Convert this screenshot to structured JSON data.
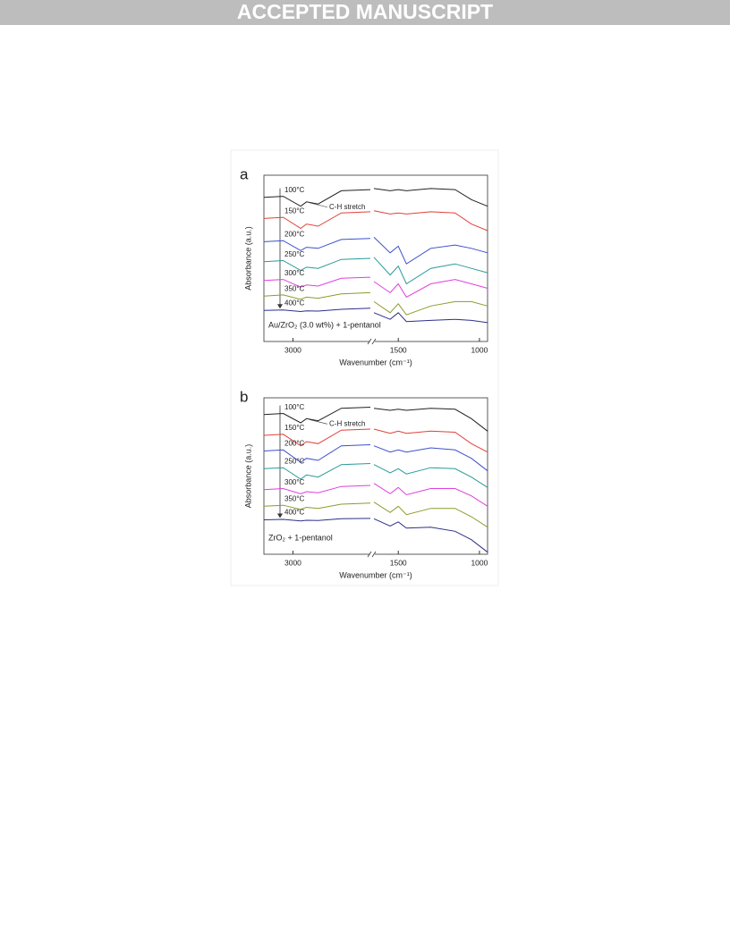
{
  "header": {
    "title": "ACCEPTED MANUSCRIPT"
  },
  "chart_data": [
    {
      "type": "line",
      "title": "a",
      "xlabel": "Wavenumber (cm⁻¹)",
      "ylabel": "Absorbance (a.u.)",
      "annotation": "C-H stretch",
      "sample": "Au/ZrO₂ (3.0 wt%) + 1-pentanol",
      "xlim": [
        3150,
        950
      ],
      "xbreak": [
        2600,
        1650
      ],
      "xticks": [
        3000,
        1500,
        1000
      ],
      "ylim": [
        0,
        7.5
      ],
      "x": [
        3150,
        3050,
        2960,
        2930,
        2870,
        2750,
        2600,
        1650,
        1550,
        1500,
        1450,
        1300,
        1150,
        1050,
        950
      ],
      "series": [
        {
          "name": "100°C",
          "color": "#222222",
          "values": [
            6.5,
            6.55,
            6.1,
            6.3,
            6.2,
            6.8,
            6.85,
            6.9,
            6.8,
            6.85,
            6.8,
            6.9,
            6.85,
            6.4,
            6.1
          ]
        },
        {
          "name": "150°C",
          "color": "#e0413a",
          "values": [
            5.55,
            5.6,
            5.1,
            5.3,
            5.2,
            5.8,
            5.85,
            5.9,
            5.75,
            5.8,
            5.75,
            5.85,
            5.8,
            5.3,
            5.0
          ]
        },
        {
          "name": "200°C",
          "color": "#3d4fcf",
          "values": [
            4.5,
            4.55,
            4.1,
            4.25,
            4.2,
            4.6,
            4.65,
            4.7,
            4.0,
            4.3,
            3.5,
            4.2,
            4.35,
            4.2,
            4.0
          ]
        },
        {
          "name": "250°C",
          "color": "#2a9a9a",
          "values": [
            3.6,
            3.65,
            3.2,
            3.35,
            3.3,
            3.7,
            3.75,
            3.8,
            3.0,
            3.4,
            2.6,
            3.3,
            3.5,
            3.3,
            3.1
          ]
        },
        {
          "name": "300°C",
          "color": "#e03ee0",
          "values": [
            2.75,
            2.8,
            2.45,
            2.55,
            2.5,
            2.85,
            2.9,
            2.7,
            2.2,
            2.6,
            2.0,
            2.6,
            2.8,
            2.6,
            2.4
          ]
        },
        {
          "name": "350°C",
          "color": "#8f9a2a",
          "values": [
            2.05,
            2.1,
            1.9,
            2.0,
            1.95,
            2.15,
            2.2,
            1.8,
            1.3,
            1.7,
            1.2,
            1.6,
            1.8,
            1.8,
            1.6
          ]
        },
        {
          "name": "400°C",
          "color": "#2c2f8a",
          "values": [
            1.4,
            1.42,
            1.35,
            1.38,
            1.37,
            1.45,
            1.5,
            1.3,
            1.0,
            1.3,
            0.9,
            0.95,
            1.0,
            0.95,
            0.85
          ]
        }
      ]
    },
    {
      "type": "line",
      "title": "b",
      "xlabel": "Wavenumber (cm⁻¹)",
      "ylabel": "Absorbance (a.u.)",
      "annotation": "C-H stretch",
      "sample": "ZrO₂ + 1-pentanol",
      "xlim": [
        3150,
        950
      ],
      "xbreak": [
        2600,
        1650
      ],
      "xticks": [
        3000,
        1500,
        1000
      ],
      "ylim": [
        0,
        7.5
      ],
      "x": [
        3150,
        3050,
        2960,
        2930,
        2870,
        2750,
        2600,
        1650,
        1550,
        1500,
        1450,
        1300,
        1150,
        1050,
        950
      ],
      "series": [
        {
          "name": "100°C",
          "color": "#222222",
          "values": [
            6.7,
            6.75,
            6.3,
            6.5,
            6.4,
            7.0,
            7.05,
            7.0,
            6.9,
            6.95,
            6.9,
            7.0,
            6.95,
            6.5,
            5.9
          ]
        },
        {
          "name": "150°C",
          "color": "#e0413a",
          "values": [
            5.7,
            5.75,
            5.2,
            5.4,
            5.3,
            5.95,
            6.0,
            6.0,
            5.8,
            5.9,
            5.8,
            5.9,
            5.85,
            5.3,
            4.9
          ]
        },
        {
          "name": "200°C",
          "color": "#3d4fcf",
          "values": [
            4.95,
            5.0,
            4.4,
            4.6,
            4.5,
            5.2,
            5.25,
            5.2,
            4.9,
            5.0,
            4.9,
            5.1,
            5.0,
            4.6,
            4.0
          ]
        },
        {
          "name": "250°C",
          "color": "#2a9a9a",
          "values": [
            4.1,
            4.15,
            3.6,
            3.8,
            3.7,
            4.3,
            4.35,
            4.3,
            3.9,
            4.1,
            3.85,
            4.15,
            4.1,
            3.7,
            3.2
          ]
        },
        {
          "name": "300°C",
          "color": "#e03ee0",
          "values": [
            3.1,
            3.15,
            2.9,
            3.0,
            2.95,
            3.25,
            3.3,
            3.4,
            2.9,
            3.2,
            2.85,
            3.15,
            3.15,
            2.8,
            2.3
          ]
        },
        {
          "name": "350°C",
          "color": "#8f9a2a",
          "values": [
            2.3,
            2.35,
            2.15,
            2.25,
            2.2,
            2.4,
            2.45,
            2.5,
            2.0,
            2.3,
            1.9,
            2.2,
            2.2,
            1.8,
            1.3
          ]
        },
        {
          "name": "400°C",
          "color": "#2c2f8a",
          "values": [
            1.65,
            1.67,
            1.6,
            1.63,
            1.62,
            1.7,
            1.72,
            1.7,
            1.35,
            1.55,
            1.25,
            1.3,
            1.1,
            0.7,
            0.1
          ]
        }
      ]
    }
  ]
}
